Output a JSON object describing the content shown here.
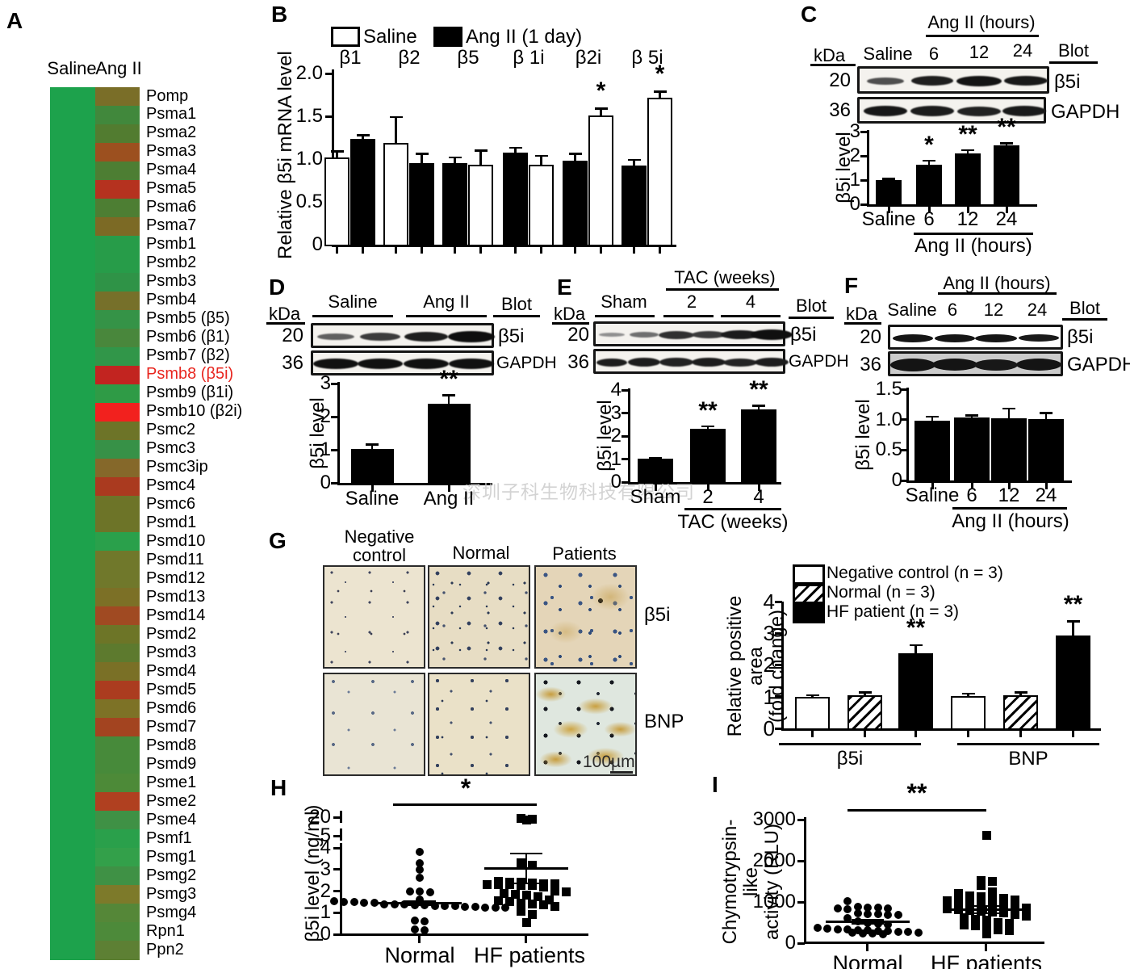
{
  "watermark": "深圳子科生物科技有限公司",
  "panels": {
    "A": {
      "letter": "A",
      "col_headers": [
        "Saline",
        "Ang II"
      ]
    },
    "B": {
      "letter": "B"
    },
    "C": {
      "letter": "C",
      "kda": "kDa",
      "blot": "Blot",
      "header": "Ang II (hours)",
      "lanes": [
        "Saline",
        "6",
        "12",
        "24"
      ],
      "mw": [
        "20",
        "36"
      ],
      "targets": [
        "β5i",
        "GAPDH"
      ]
    },
    "D": {
      "letter": "D",
      "kda": "kDa",
      "blot": "Blot",
      "groups": [
        "Saline",
        "Ang II"
      ],
      "mw": [
        "20",
        "36"
      ],
      "targets": [
        "β5i",
        "GAPDH"
      ]
    },
    "E": {
      "letter": "E",
      "kda": "kDa",
      "blot": "Blot",
      "header": "TAC (weeks)",
      "lanes": [
        "Sham",
        "2",
        "4"
      ],
      "mw": [
        "20",
        "36"
      ],
      "targets": [
        "β5i",
        "GAPDH"
      ]
    },
    "F": {
      "letter": "F",
      "kda": "kDa",
      "blot": "Blot",
      "header": "Ang II (hours)",
      "lanes": [
        "Saline",
        "6",
        "12",
        "24"
      ],
      "mw": [
        "20",
        "36"
      ],
      "targets": [
        "β5i",
        "GAPDH"
      ]
    },
    "G": {
      "letter": "G",
      "col_header_lines": [
        "Negative",
        "control",
        "Normal",
        "Patients"
      ],
      "row_labels": [
        "β5i",
        "BNP"
      ],
      "scale_bar": "100µm"
    },
    "H": {
      "letter": "H"
    },
    "I": {
      "letter": "I"
    }
  },
  "chart_data": [
    {
      "panel": "A",
      "type": "heatmap",
      "columns": [
        "Saline",
        "Ang II"
      ],
      "saline_color": "#1da24c",
      "highlight_gene": "Psmb8 (β5i)",
      "highlight_text_color": "#e8261f",
      "rows": [
        {
          "gene": "Pomp",
          "angii_color": "#7a6e28"
        },
        {
          "gene": "Psma1",
          "angii_color": "#41883c"
        },
        {
          "gene": "Psma2",
          "angii_color": "#527c30"
        },
        {
          "gene": "Psma3",
          "angii_color": "#9c501f"
        },
        {
          "gene": "Psma4",
          "angii_color": "#4d7e33"
        },
        {
          "gene": "Psma5",
          "angii_color": "#b5321f"
        },
        {
          "gene": "Psma6",
          "angii_color": "#4d7e33"
        },
        {
          "gene": "Psma7",
          "angii_color": "#7c6a25"
        },
        {
          "gene": "Psmb1",
          "angii_color": "#279c49"
        },
        {
          "gene": "Psmb2",
          "angii_color": "#279c49"
        },
        {
          "gene": "Psmb3",
          "angii_color": "#2f9347"
        },
        {
          "gene": "Psmb4",
          "angii_color": "#76702a"
        },
        {
          "gene": "Psmb5 (β5)",
          "angii_color": "#359347"
        },
        {
          "gene": "Psmb6 (β1)",
          "angii_color": "#49873c"
        },
        {
          "gene": "Psmb7 (β2)",
          "angii_color": "#319649"
        },
        {
          "gene": "Psmb8 (β5i)",
          "angii_color": "#c22420"
        },
        {
          "gene": "Psmb9 (β1i)",
          "angii_color": "#2f9b46"
        },
        {
          "gene": "Psmb10 (β2i)",
          "angii_color": "#f2211e"
        },
        {
          "gene": "Psmc2",
          "angii_color": "#6d7428"
        },
        {
          "gene": "Psmc3",
          "angii_color": "#379147"
        },
        {
          "gene": "Psmc3ip",
          "angii_color": "#85682a"
        },
        {
          "gene": "Psmc4",
          "angii_color": "#aa3a1f"
        },
        {
          "gene": "Psmc6",
          "angii_color": "#6d7428"
        },
        {
          "gene": "Psmd1",
          "angii_color": "#6d7428"
        },
        {
          "gene": "Psmd10",
          "angii_color": "#2aa04b"
        },
        {
          "gene": "Psmd11",
          "angii_color": "#70782b"
        },
        {
          "gene": "Psmd12",
          "angii_color": "#70782b"
        },
        {
          "gene": "Psmd13",
          "angii_color": "#7c7026"
        },
        {
          "gene": "Psmd14",
          "angii_color": "#a04a22"
        },
        {
          "gene": "Psmd2",
          "angii_color": "#6d7527"
        },
        {
          "gene": "Psmd3",
          "angii_color": "#5d7a2e"
        },
        {
          "gene": "Psmd4",
          "angii_color": "#7a7026"
        },
        {
          "gene": "Psmd5",
          "angii_color": "#ab3c1f"
        },
        {
          "gene": "Psmd6",
          "angii_color": "#7d7226"
        },
        {
          "gene": "Psmd7",
          "angii_color": "#a34420"
        },
        {
          "gene": "Psmd8",
          "angii_color": "#478a3a"
        },
        {
          "gene": "Psmd9",
          "angii_color": "#478a3a"
        },
        {
          "gene": "Psme1",
          "angii_color": "#4d8a38"
        },
        {
          "gene": "Psme2",
          "angii_color": "#b04020"
        },
        {
          "gene": "Psme4",
          "angii_color": "#3f9145"
        },
        {
          "gene": "Psmf1",
          "angii_color": "#2aa04b"
        },
        {
          "gene": "Psmg1",
          "angii_color": "#33a04a"
        },
        {
          "gene": "Psmg2",
          "angii_color": "#3f9145"
        },
        {
          "gene": "Psmg3",
          "angii_color": "#7d7a2a"
        },
        {
          "gene": "Psmg4",
          "angii_color": "#558738"
        },
        {
          "gene": "Rpn1",
          "angii_color": "#4d8a3a"
        },
        {
          "gene": "Ppn2",
          "angii_color": "#5d8034"
        }
      ]
    },
    {
      "panel": "B",
      "type": "bar",
      "ylabel": "Relative β5i mRNA level",
      "ylim": [
        0,
        2.0
      ],
      "ytick_values": [
        0,
        0.5,
        1.0,
        1.5,
        2.0
      ],
      "ytick_labels": [
        "0",
        "0.5",
        "1.0",
        "1.5",
        "2.0"
      ],
      "legend": [
        {
          "label": "Saline",
          "fill": "white"
        },
        {
          "label": "Ang II (1 day)",
          "fill": "black"
        }
      ],
      "groups": [
        "β1",
        "β2",
        "β5",
        "β 1i",
        "β2i",
        "β 5i"
      ],
      "bars": [
        {
          "group": 0,
          "fill": "white",
          "value": 1.02,
          "err": 0.07,
          "sig": ""
        },
        {
          "group": 0,
          "fill": "black",
          "value": 1.24,
          "err": 0.04,
          "sig": ""
        },
        {
          "group": 1,
          "fill": "white",
          "value": 1.19,
          "err": 0.3,
          "sig": ""
        },
        {
          "group": 1,
          "fill": "black",
          "value": 0.95,
          "err": 0.11,
          "sig": ""
        },
        {
          "group": 2,
          "fill": "black",
          "value": 0.95,
          "err": 0.07,
          "sig": ""
        },
        {
          "group": 2,
          "fill": "white",
          "value": 0.93,
          "err": 0.17,
          "sig": ""
        },
        {
          "group": 3,
          "fill": "black",
          "value": 1.08,
          "err": 0.05,
          "sig": ""
        },
        {
          "group": 3,
          "fill": "white",
          "value": 0.93,
          "err": 0.11,
          "sig": ""
        },
        {
          "group": 4,
          "fill": "black",
          "value": 0.98,
          "err": 0.08,
          "sig": ""
        },
        {
          "group": 4,
          "fill": "white",
          "value": 1.51,
          "err": 0.08,
          "sig": "*"
        },
        {
          "group": 5,
          "fill": "black",
          "value": 0.92,
          "err": 0.07,
          "sig": ""
        },
        {
          "group": 5,
          "fill": "white",
          "value": 1.72,
          "err": 0.07,
          "sig": "*"
        }
      ]
    },
    {
      "panel": "C",
      "type": "bar",
      "ylabel": "β5i level",
      "ylim": [
        0,
        3
      ],
      "ytick_values": [
        0,
        1,
        2,
        3
      ],
      "ytick_labels": [
        "0",
        "1",
        "2",
        "3"
      ],
      "categories": [
        "Saline",
        "6",
        "12",
        "24"
      ],
      "values": [
        1.0,
        1.62,
        2.1,
        2.42
      ],
      "errors": [
        0.05,
        0.18,
        0.13,
        0.1
      ],
      "sig": [
        "",
        "*",
        "**",
        "**"
      ],
      "xgroup_label": "Ang II (hours)"
    },
    {
      "panel": "D",
      "type": "bar",
      "ylabel": "β5i level",
      "ylim": [
        0,
        3
      ],
      "ytick_values": [
        0,
        1,
        2,
        3
      ],
      "ytick_labels": [
        "0",
        "1",
        "2",
        "3"
      ],
      "categories": [
        "Saline",
        "Ang II"
      ],
      "values": [
        1.03,
        2.4
      ],
      "errors": [
        0.13,
        0.25
      ],
      "sig": [
        "",
        "**"
      ],
      "xgroup_label": ""
    },
    {
      "panel": "E",
      "type": "bar",
      "ylabel": "β5i level",
      "ylim": [
        0,
        4
      ],
      "ytick_values": [
        0,
        1,
        2,
        3,
        4
      ],
      "ytick_labels": [
        "0",
        "1",
        "2",
        "3",
        "4"
      ],
      "categories": [
        "Sham",
        "2",
        "4"
      ],
      "values": [
        1.02,
        2.3,
        3.15
      ],
      "errors": [
        0.04,
        0.12,
        0.17
      ],
      "sig": [
        "",
        "**",
        "**"
      ],
      "xgroup_label": "TAC (weeks)"
    },
    {
      "panel": "F",
      "type": "bar",
      "ylabel": "β5i level",
      "ylim": [
        0,
        1.5
      ],
      "ytick_values": [
        0,
        0.5,
        1.0,
        1.5
      ],
      "ytick_labels": [
        "0",
        "0.5",
        "1.0",
        "1.5"
      ],
      "categories": [
        "Saline",
        "6",
        "12",
        "24"
      ],
      "values": [
        0.98,
        1.04,
        1.02,
        1.01
      ],
      "errors": [
        0.07,
        0.03,
        0.16,
        0.1
      ],
      "sig": [
        "",
        "",
        "",
        ""
      ],
      "xgroup_label": "Ang II (hours)"
    },
    {
      "panel": "G",
      "type": "bar",
      "ylabel_lines": [
        "Relative positive area",
        "(fold change)"
      ],
      "ylim": [
        0,
        4
      ],
      "ytick_values": [
        0,
        1,
        2,
        3,
        4
      ],
      "ytick_labels": [
        "0",
        "1",
        "2",
        "3",
        "4"
      ],
      "groups": [
        "β5i",
        "BNP"
      ],
      "legend": [
        {
          "label": "Negative control (n = 3)",
          "fill": "white"
        },
        {
          "label": "Normal (n = 3)",
          "fill": "hatch"
        },
        {
          "label": "HF patient (n = 3)",
          "fill": "black"
        }
      ],
      "series": [
        {
          "name": "Negative control",
          "fill": "white",
          "values": [
            1.0,
            1.02
          ],
          "errors": [
            0.05,
            0.08
          ],
          "sig": [
            "",
            ""
          ]
        },
        {
          "name": "Normal",
          "fill": "hatch",
          "values": [
            1.05,
            1.04
          ],
          "errors": [
            0.08,
            0.1
          ],
          "sig": [
            "",
            ""
          ]
        },
        {
          "name": "HF patient",
          "fill": "black",
          "values": [
            2.38,
            2.92
          ],
          "errors": [
            0.25,
            0.45
          ],
          "sig": [
            "**",
            "**"
          ]
        }
      ]
    },
    {
      "panel": "H",
      "type": "scatter",
      "ylabel": "β5i level (ng/ml)",
      "ytick_values": [
        0,
        1,
        2,
        3,
        4,
        5,
        20
      ],
      "axis_break_after": 4,
      "sig": "*",
      "groups": [
        {
          "label": "Normal",
          "marker": "circle",
          "mean": 1.45,
          "sem": 0.1,
          "values": [
            3.8,
            3.3,
            3.0,
            2.6,
            2.0,
            2.0,
            1.95,
            1.6,
            1.55,
            1.5,
            1.5,
            1.45,
            1.45,
            1.4,
            1.4,
            1.38,
            1.35,
            1.35,
            1.32,
            1.3,
            1.3,
            1.28,
            1.28,
            1.25,
            1.25,
            1.25,
            0.65,
            0.6,
            0.22,
            0.2
          ]
        },
        {
          "label": "HF patients",
          "marker": "square",
          "mean": 3.05,
          "sem": 0.7,
          "values": [
            19.0,
            18.5,
            17.8,
            3.3,
            3.2,
            2.45,
            2.4,
            2.4,
            2.38,
            2.35,
            2.35,
            2.3,
            2.3,
            2.3,
            2.28,
            2.25,
            2.2,
            2.0,
            1.95,
            1.9,
            1.85,
            1.8,
            1.75,
            1.6,
            1.55,
            1.5,
            1.45,
            1.4,
            1.35,
            1.3,
            1.05,
            0.9,
            0.55
          ]
        }
      ]
    },
    {
      "panel": "I",
      "type": "scatter",
      "ylabel_lines": [
        "Chymotrypsin-like",
        "activity (RLU)"
      ],
      "ytick_values": [
        0,
        1000,
        2000,
        3000
      ],
      "sig": "**",
      "groups": [
        {
          "label": "Normal",
          "marker": "circle",
          "mean": 520,
          "sem": 55,
          "values": [
            1020,
            880,
            870,
            860,
            850,
            840,
            830,
            720,
            710,
            700,
            690,
            680,
            600,
            520,
            500,
            480,
            460,
            380,
            360,
            340,
            330,
            320,
            310,
            300,
            290,
            280,
            270,
            260,
            250,
            240,
            230,
            220
          ]
        },
        {
          "label": "HF patients",
          "marker": "square",
          "mean": 820,
          "sem": 85,
          "values": [
            2620,
            1520,
            1500,
            1400,
            1250,
            1200,
            1150,
            1120,
            1100,
            1080,
            1050,
            1020,
            1000,
            980,
            950,
            930,
            900,
            880,
            860,
            840,
            820,
            800,
            780,
            760,
            740,
            700,
            650,
            620,
            580,
            550,
            500,
            480,
            450,
            420,
            350,
            320,
            300,
            220
          ]
        }
      ]
    }
  ]
}
